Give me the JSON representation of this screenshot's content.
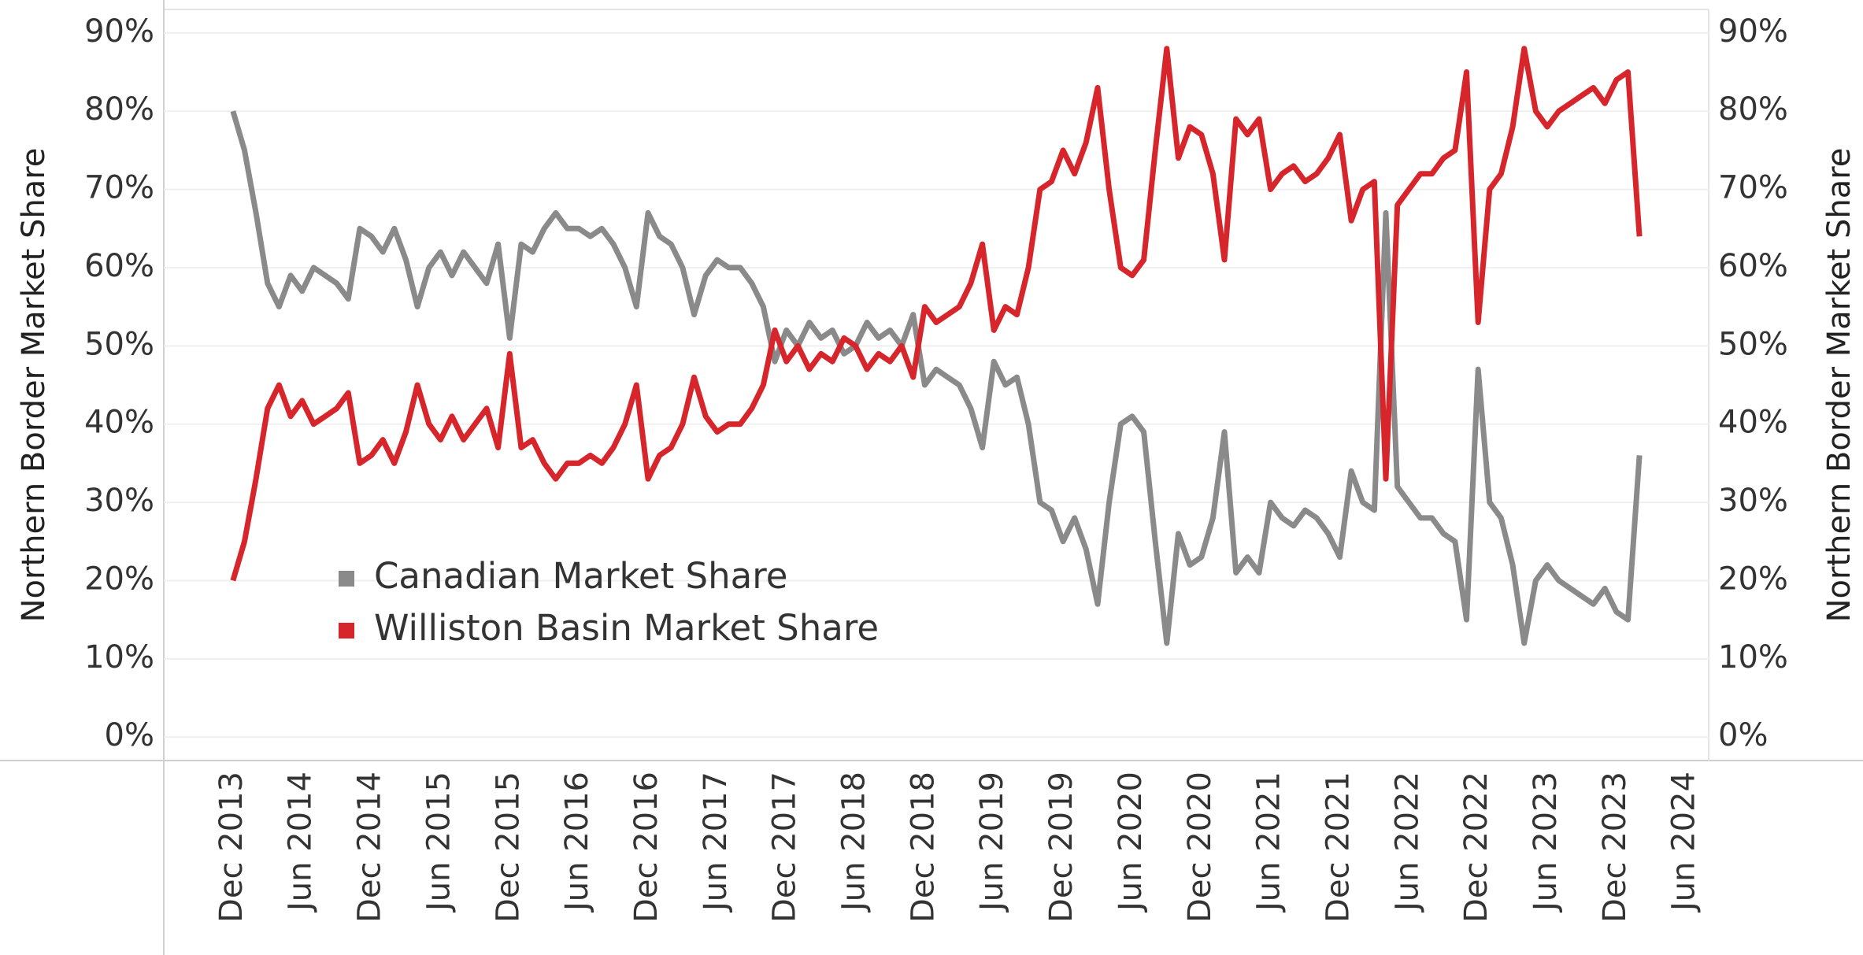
{
  "chart_data": {
    "type": "line",
    "y_label": "Northern Border Market Share",
    "y2_label": "Northern Border Market Share",
    "x": [
      "2013-12",
      "2014-01",
      "2014-02",
      "2014-03",
      "2014-04",
      "2014-05",
      "2014-06",
      "2014-07",
      "2014-08",
      "2014-09",
      "2014-10",
      "2014-11",
      "2014-12",
      "2015-01",
      "2015-02",
      "2015-03",
      "2015-04",
      "2015-05",
      "2015-06",
      "2015-07",
      "2015-08",
      "2015-09",
      "2015-10",
      "2015-11",
      "2015-12",
      "2016-01",
      "2016-02",
      "2016-03",
      "2016-04",
      "2016-05",
      "2016-06",
      "2016-07",
      "2016-08",
      "2016-09",
      "2016-10",
      "2016-11",
      "2016-12",
      "2017-01",
      "2017-02",
      "2017-03",
      "2017-04",
      "2017-05",
      "2017-06",
      "2017-07",
      "2017-08",
      "2017-09",
      "2017-10",
      "2017-11",
      "2017-12",
      "2018-01",
      "2018-02",
      "2018-03",
      "2018-04",
      "2018-05",
      "2018-06",
      "2018-07",
      "2018-08",
      "2018-09",
      "2018-10",
      "2018-11",
      "2018-12",
      "2019-01",
      "2019-02",
      "2019-03",
      "2019-04",
      "2019-05",
      "2019-06",
      "2019-07",
      "2019-08",
      "2019-09",
      "2019-10",
      "2019-11",
      "2019-12",
      "2020-01",
      "2020-02",
      "2020-03",
      "2020-04",
      "2020-05",
      "2020-06",
      "2020-07",
      "2020-08",
      "2020-09",
      "2020-10",
      "2020-11",
      "2020-12",
      "2021-01",
      "2021-02",
      "2021-03",
      "2021-04",
      "2021-05",
      "2021-06",
      "2021-07",
      "2021-08",
      "2021-09",
      "2021-10",
      "2021-11",
      "2021-12",
      "2022-01",
      "2022-02",
      "2022-03",
      "2022-04",
      "2022-05",
      "2022-06",
      "2022-07",
      "2022-08",
      "2022-09",
      "2022-10",
      "2022-11",
      "2022-12",
      "2023-01",
      "2023-02",
      "2023-03",
      "2023-04",
      "2023-05",
      "2023-06",
      "2023-07",
      "2023-08",
      "2023-09",
      "2023-10",
      "2023-11",
      "2023-12",
      "2024-01",
      "2024-02"
    ],
    "series": [
      {
        "name": "Canadian Market Share",
        "color": "#8a8a8a",
        "values": [
          80,
          75,
          67,
          58,
          55,
          59,
          57,
          60,
          59,
          58,
          56,
          65,
          64,
          62,
          65,
          61,
          55,
          60,
          62,
          59,
          62,
          60,
          58,
          63,
          51,
          63,
          62,
          65,
          67,
          65,
          65,
          64,
          65,
          63,
          60,
          55,
          67,
          64,
          63,
          60,
          54,
          59,
          61,
          60,
          60,
          58,
          55,
          48,
          52,
          50,
          53,
          51,
          52,
          49,
          50,
          53,
          51,
          52,
          50,
          54,
          45,
          47,
          46,
          45,
          42,
          37,
          48,
          45,
          46,
          40,
          30,
          29,
          25,
          28,
          24,
          17,
          30,
          40,
          41,
          39,
          25,
          12,
          26,
          22,
          23,
          28,
          39,
          21,
          23,
          21,
          30,
          28,
          27,
          29,
          28,
          26,
          23,
          34,
          30,
          29,
          67,
          32,
          30,
          28,
          28,
          26,
          25,
          15,
          47,
          30,
          28,
          22,
          12,
          20,
          22,
          20,
          19,
          18,
          17,
          19,
          16,
          15,
          36
        ]
      },
      {
        "name": "Williston Basin Market Share",
        "color": "#d7262b",
        "values": [
          20,
          25,
          33,
          42,
          45,
          41,
          43,
          40,
          41,
          42,
          44,
          35,
          36,
          38,
          35,
          39,
          45,
          40,
          38,
          41,
          38,
          40,
          42,
          37,
          49,
          37,
          38,
          35,
          33,
          35,
          35,
          36,
          35,
          37,
          40,
          45,
          33,
          36,
          37,
          40,
          46,
          41,
          39,
          40,
          40,
          42,
          45,
          52,
          48,
          50,
          47,
          49,
          48,
          51,
          50,
          47,
          49,
          48,
          50,
          46,
          55,
          53,
          54,
          55,
          58,
          63,
          52,
          55,
          54,
          60,
          70,
          71,
          75,
          72,
          76,
          83,
          70,
          60,
          59,
          61,
          75,
          88,
          74,
          78,
          77,
          72,
          61,
          79,
          77,
          79,
          70,
          72,
          73,
          71,
          72,
          74,
          77,
          66,
          70,
          71,
          33,
          68,
          70,
          72,
          72,
          74,
          75,
          85,
          53,
          70,
          72,
          78,
          88,
          80,
          78,
          80,
          81,
          82,
          83,
          81,
          84,
          85,
          64
        ]
      }
    ],
    "xlim": [
      "2013-06",
      "2024-08"
    ],
    "xticks": [
      {
        "value": "2013-12",
        "label": "Dec 2013"
      },
      {
        "value": "2014-06",
        "label": "Jun 2014"
      },
      {
        "value": "2014-12",
        "label": "Dec 2014"
      },
      {
        "value": "2015-06",
        "label": "Jun 2015"
      },
      {
        "value": "2015-12",
        "label": "Dec 2015"
      },
      {
        "value": "2016-06",
        "label": "Jun 2016"
      },
      {
        "value": "2016-12",
        "label": "Dec 2016"
      },
      {
        "value": "2017-06",
        "label": "Jun 2017"
      },
      {
        "value": "2017-12",
        "label": "Dec 2017"
      },
      {
        "value": "2018-06",
        "label": "Jun 2018"
      },
      {
        "value": "2018-12",
        "label": "Dec 2018"
      },
      {
        "value": "2019-06",
        "label": "Jun 2019"
      },
      {
        "value": "2019-12",
        "label": "Dec 2019"
      },
      {
        "value": "2020-06",
        "label": "Jun 2020"
      },
      {
        "value": "2020-12",
        "label": "Dec 2020"
      },
      {
        "value": "2021-06",
        "label": "Jun 2021"
      },
      {
        "value": "2021-12",
        "label": "Dec 2021"
      },
      {
        "value": "2022-06",
        "label": "Jun 2022"
      },
      {
        "value": "2022-12",
        "label": "Dec 2022"
      },
      {
        "value": "2023-06",
        "label": "Jun 2023"
      },
      {
        "value": "2023-12",
        "label": "Dec 2023"
      },
      {
        "value": "2024-06",
        "label": "Jun 2024"
      }
    ],
    "ylim": [
      -3,
      93
    ],
    "yticks": [
      {
        "value": 0,
        "label": "0%"
      },
      {
        "value": 10,
        "label": "10%"
      },
      {
        "value": 20,
        "label": "20%"
      },
      {
        "value": 30,
        "label": "30%"
      },
      {
        "value": 40,
        "label": "40%"
      },
      {
        "value": 50,
        "label": "50%"
      },
      {
        "value": 60,
        "label": "60%"
      },
      {
        "value": 70,
        "label": "70%"
      },
      {
        "value": 80,
        "label": "80%"
      },
      {
        "value": 90,
        "label": "90%"
      }
    ],
    "y2lim": [
      -3,
      93
    ],
    "y2ticks": [
      {
        "value": 0,
        "label": "0%"
      },
      {
        "value": 10,
        "label": "10%"
      },
      {
        "value": 20,
        "label": "20%"
      },
      {
        "value": 30,
        "label": "30%"
      },
      {
        "value": 40,
        "label": "40%"
      },
      {
        "value": 50,
        "label": "50%"
      },
      {
        "value": 60,
        "label": "60%"
      },
      {
        "value": 70,
        "label": "70%"
      },
      {
        "value": 80,
        "label": "80%"
      },
      {
        "value": 90,
        "label": "90%"
      }
    ],
    "grid": true,
    "legend": "lower left"
  }
}
